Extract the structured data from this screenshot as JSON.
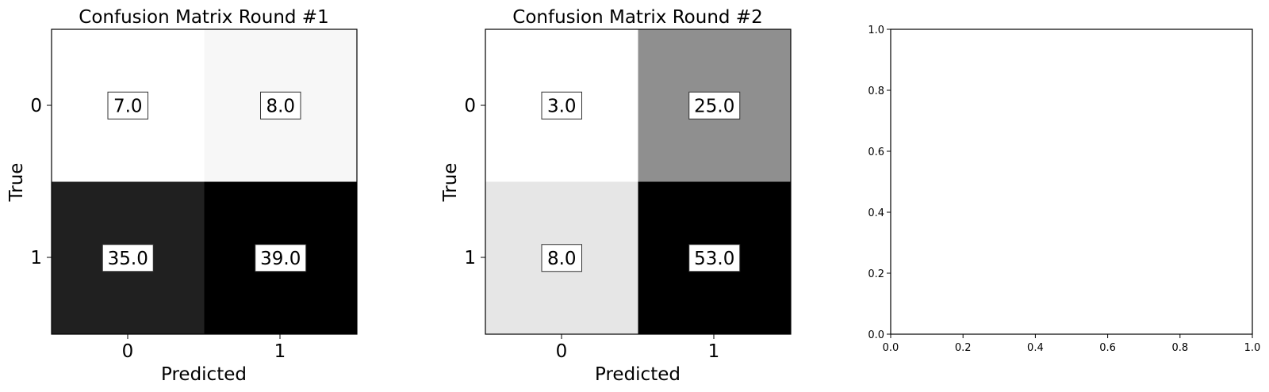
{
  "chart_data": [
    {
      "type": "heatmap",
      "title": "Confusion Matrix Round #1",
      "xlabel": "Predicted",
      "ylabel": "True",
      "x_ticks": [
        "0",
        "1"
      ],
      "y_ticks": [
        "0",
        "1"
      ],
      "values": [
        [
          7.0,
          8.0
        ],
        [
          35.0,
          39.0
        ]
      ],
      "cell_labels": [
        [
          "7.0",
          "8.0"
        ],
        [
          "35.0",
          "39.0"
        ]
      ],
      "colormap": "greys",
      "value_range": [
        7.0,
        39.0
      ]
    },
    {
      "type": "heatmap",
      "title": "Confusion Matrix Round #2",
      "xlabel": "Predicted",
      "ylabel": "True",
      "x_ticks": [
        "0",
        "1"
      ],
      "y_ticks": [
        "0",
        "1"
      ],
      "values": [
        [
          3.0,
          25.0
        ],
        [
          8.0,
          53.0
        ]
      ],
      "cell_labels": [
        [
          "3.0",
          "25.0"
        ],
        [
          "8.0",
          "53.0"
        ]
      ],
      "colormap": "greys",
      "value_range": [
        3.0,
        53.0
      ]
    },
    {
      "type": "scatter",
      "title": "",
      "xlabel": "",
      "ylabel": "",
      "xlim": [
        0.0,
        1.0
      ],
      "ylim": [
        0.0,
        1.0
      ],
      "x_ticks": [
        "0.0",
        "0.2",
        "0.4",
        "0.6",
        "0.8",
        "1.0"
      ],
      "y_ticks": [
        "0.0",
        "0.2",
        "0.4",
        "0.6",
        "0.8",
        "1.0"
      ],
      "series": []
    }
  ]
}
